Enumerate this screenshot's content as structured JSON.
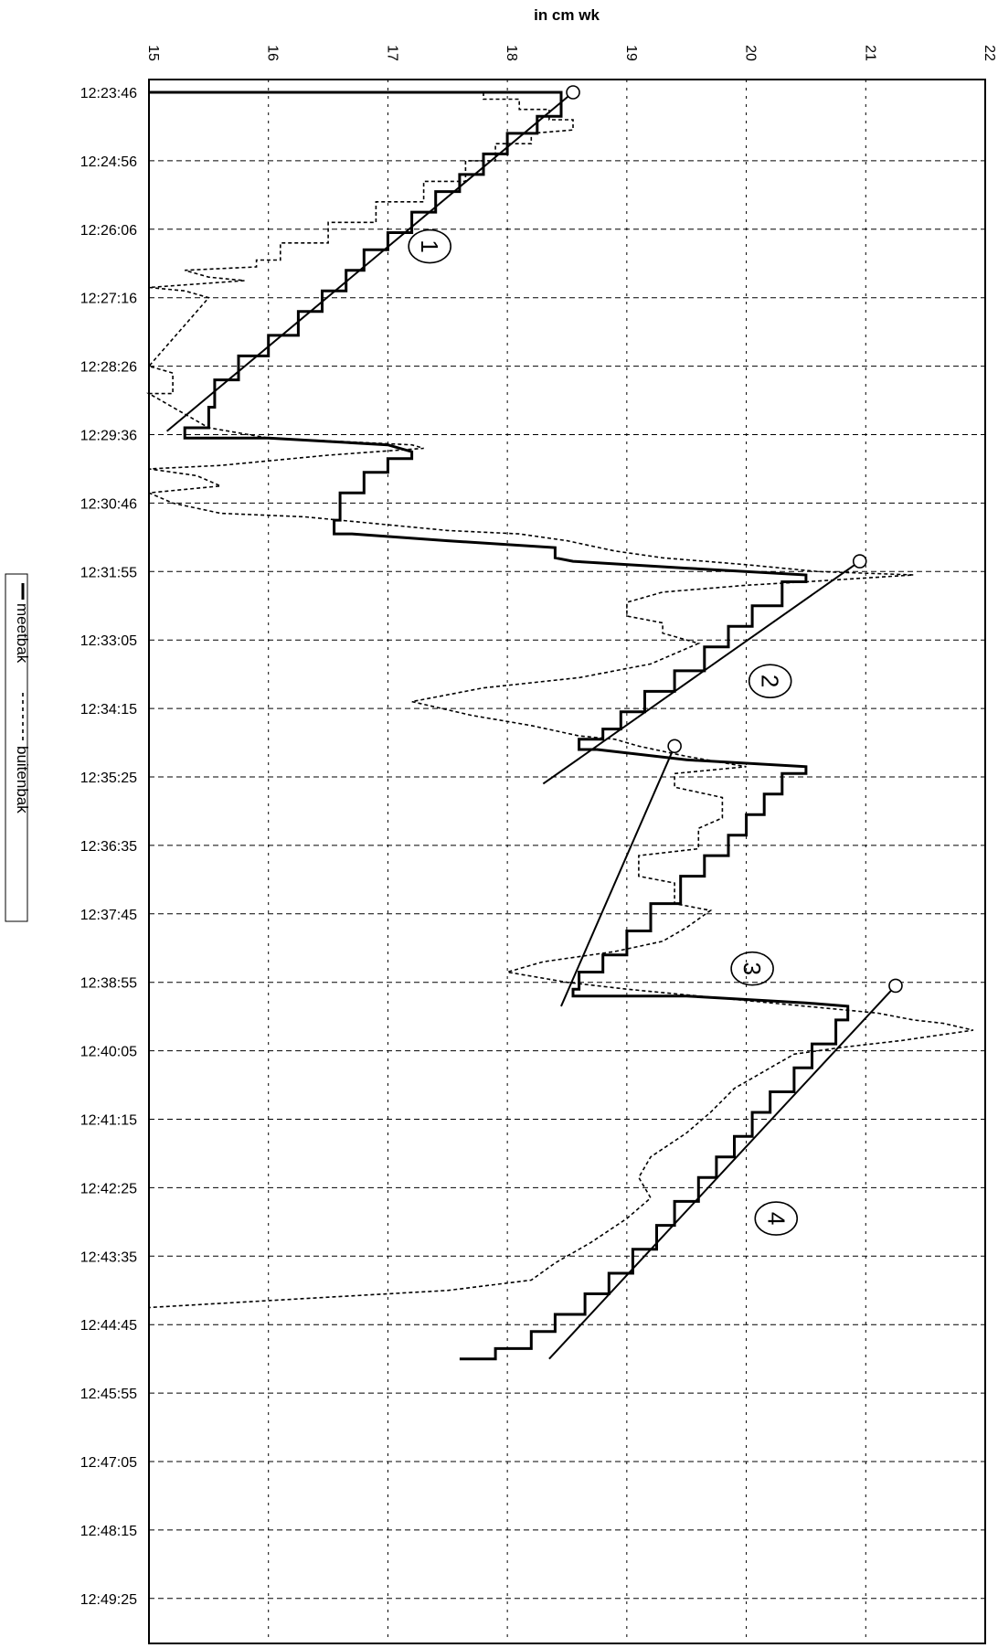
{
  "chart_data": {
    "type": "line",
    "title": "",
    "xlabel": "in cm wk",
    "ylabel": "",
    "orientation": "rotated-90",
    "value_axis": {
      "range": [
        15,
        22
      ],
      "ticks": [
        "15",
        "16",
        "17",
        "18",
        "19",
        "20",
        "21",
        "22"
      ],
      "position": "top"
    },
    "time_axis": {
      "position": "left",
      "ticks": [
        "12:23:46",
        "12:24:56",
        "12:26:06",
        "12:27:16",
        "12:28:26",
        "12:29:36",
        "12:30:46",
        "12:31:55",
        "12:33:05",
        "12:34:15",
        "12:35:25",
        "12:36:35",
        "12:37:45",
        "12:38:55",
        "12:40:05",
        "12:41:15",
        "12:42:25",
        "12:43:35",
        "12:44:45",
        "12:45:55",
        "12:47:05",
        "12:48:15",
        "12:49:25"
      ]
    },
    "grid": true,
    "legend": {
      "placement": "left",
      "entries": [
        "meetbak",
        "buitenbak"
      ]
    },
    "series": [
      {
        "name": "meetbak",
        "style": "solid",
        "points": [
          [
            0,
            15.0
          ],
          [
            0.0,
            18.45
          ],
          [
            0.35,
            18.45
          ],
          [
            0.35,
            18.25
          ],
          [
            0.6,
            18.25
          ],
          [
            0.6,
            18.0
          ],
          [
            0.9,
            18.0
          ],
          [
            0.9,
            17.8
          ],
          [
            1.2,
            17.8
          ],
          [
            1.2,
            17.6
          ],
          [
            1.45,
            17.6
          ],
          [
            1.45,
            17.4
          ],
          [
            1.75,
            17.4
          ],
          [
            1.75,
            17.2
          ],
          [
            2.05,
            17.2
          ],
          [
            2.05,
            17.0
          ],
          [
            2.3,
            17.0
          ],
          [
            2.3,
            16.8
          ],
          [
            2.6,
            16.8
          ],
          [
            2.6,
            16.65
          ],
          [
            2.9,
            16.65
          ],
          [
            2.9,
            16.45
          ],
          [
            3.2,
            16.45
          ],
          [
            3.2,
            16.25
          ],
          [
            3.55,
            16.25
          ],
          [
            3.55,
            16.0
          ],
          [
            3.85,
            16.0
          ],
          [
            3.85,
            15.75
          ],
          [
            4.2,
            15.75
          ],
          [
            4.2,
            15.55
          ],
          [
            4.6,
            15.55
          ],
          [
            4.6,
            15.5
          ],
          [
            4.9,
            15.5
          ],
          [
            4.9,
            15.3
          ],
          [
            5.05,
            15.3
          ],
          [
            5.05,
            16.0
          ],
          [
            5.15,
            17.0
          ],
          [
            5.25,
            17.2
          ],
          [
            5.35,
            17.2
          ],
          [
            5.35,
            17.0
          ],
          [
            5.55,
            17.0
          ],
          [
            5.55,
            16.8
          ],
          [
            5.85,
            16.8
          ],
          [
            5.85,
            16.6
          ],
          [
            6.25,
            16.6
          ],
          [
            6.25,
            16.55
          ],
          [
            6.45,
            16.55
          ],
          [
            6.45,
            16.7
          ],
          [
            6.55,
            17.5
          ],
          [
            6.65,
            18.4
          ],
          [
            6.8,
            18.4
          ],
          [
            6.85,
            18.55
          ],
          [
            6.95,
            19.5
          ],
          [
            7.05,
            20.5
          ],
          [
            7.15,
            20.5
          ],
          [
            7.15,
            20.3
          ],
          [
            7.5,
            20.3
          ],
          [
            7.5,
            20.05
          ],
          [
            7.8,
            20.05
          ],
          [
            7.8,
            19.85
          ],
          [
            8.1,
            19.85
          ],
          [
            8.1,
            19.65
          ],
          [
            8.45,
            19.65
          ],
          [
            8.45,
            19.4
          ],
          [
            8.75,
            19.4
          ],
          [
            8.75,
            19.15
          ],
          [
            9.05,
            19.15
          ],
          [
            9.05,
            18.95
          ],
          [
            9.3,
            18.95
          ],
          [
            9.3,
            18.8
          ],
          [
            9.45,
            18.8
          ],
          [
            9.45,
            18.6
          ],
          [
            9.6,
            18.6
          ],
          [
            9.6,
            18.75
          ],
          [
            9.75,
            19.5
          ],
          [
            9.85,
            20.5
          ],
          [
            9.95,
            20.5
          ],
          [
            9.95,
            20.3
          ],
          [
            10.25,
            20.3
          ],
          [
            10.25,
            20.15
          ],
          [
            10.55,
            20.15
          ],
          [
            10.55,
            20.0
          ],
          [
            10.85,
            20.0
          ],
          [
            10.85,
            19.85
          ],
          [
            11.15,
            19.85
          ],
          [
            11.15,
            19.65
          ],
          [
            11.45,
            19.65
          ],
          [
            11.45,
            19.45
          ],
          [
            11.85,
            19.45
          ],
          [
            11.85,
            19.2
          ],
          [
            12.25,
            19.2
          ],
          [
            12.25,
            19.0
          ],
          [
            12.6,
            19.0
          ],
          [
            12.6,
            18.8
          ],
          [
            12.85,
            18.8
          ],
          [
            12.85,
            18.6
          ],
          [
            13.1,
            18.6
          ],
          [
            13.1,
            18.55
          ],
          [
            13.2,
            18.55
          ],
          [
            13.2,
            19.5
          ],
          [
            13.3,
            20.5
          ],
          [
            13.35,
            20.85
          ],
          [
            13.55,
            20.85
          ],
          [
            13.55,
            20.75
          ],
          [
            13.9,
            20.75
          ],
          [
            13.9,
            20.55
          ],
          [
            14.25,
            20.55
          ],
          [
            14.25,
            20.4
          ],
          [
            14.6,
            20.4
          ],
          [
            14.6,
            20.2
          ],
          [
            14.9,
            20.2
          ],
          [
            14.9,
            20.05
          ],
          [
            15.25,
            20.05
          ],
          [
            15.25,
            19.9
          ],
          [
            15.55,
            19.9
          ],
          [
            15.55,
            19.75
          ],
          [
            15.85,
            19.75
          ],
          [
            15.85,
            19.6
          ],
          [
            16.2,
            19.6
          ],
          [
            16.2,
            19.4
          ],
          [
            16.55,
            19.4
          ],
          [
            16.55,
            19.25
          ],
          [
            16.9,
            19.25
          ],
          [
            16.9,
            19.05
          ],
          [
            17.25,
            19.05
          ],
          [
            17.25,
            18.85
          ],
          [
            17.55,
            18.85
          ],
          [
            17.55,
            18.65
          ],
          [
            17.85,
            18.65
          ],
          [
            17.85,
            18.4
          ],
          [
            18.1,
            18.4
          ],
          [
            18.1,
            18.2
          ],
          [
            18.35,
            18.2
          ],
          [
            18.35,
            17.9
          ],
          [
            18.5,
            17.9
          ],
          [
            18.5,
            17.6
          ]
        ]
      },
      {
        "name": "buitenbak",
        "style": "dashed",
        "points": [
          [
            0,
            17.8
          ],
          [
            0.1,
            17.8
          ],
          [
            0.1,
            18.1
          ],
          [
            0.25,
            18.1
          ],
          [
            0.25,
            18.35
          ],
          [
            0.4,
            18.35
          ],
          [
            0.4,
            18.55
          ],
          [
            0.55,
            18.55
          ],
          [
            0.6,
            18.2
          ],
          [
            0.75,
            18.2
          ],
          [
            0.75,
            17.9
          ],
          [
            1.0,
            17.9
          ],
          [
            1.0,
            17.65
          ],
          [
            1.3,
            17.65
          ],
          [
            1.3,
            17.3
          ],
          [
            1.6,
            17.3
          ],
          [
            1.6,
            16.9
          ],
          [
            1.9,
            16.9
          ],
          [
            1.9,
            16.5
          ],
          [
            2.2,
            16.5
          ],
          [
            2.2,
            16.1
          ],
          [
            2.45,
            16.1
          ],
          [
            2.45,
            15.9
          ],
          [
            2.55,
            15.9
          ],
          [
            2.6,
            15.3
          ],
          [
            2.7,
            15.5
          ],
          [
            2.75,
            15.8
          ],
          [
            2.85,
            15.0
          ],
          [
            2.9,
            15.3
          ],
          [
            3.0,
            15.5
          ],
          [
            4.0,
            15.0
          ],
          [
            4.1,
            15.2
          ],
          [
            4.4,
            15.2
          ],
          [
            4.4,
            15.0
          ],
          [
            4.9,
            15.5
          ],
          [
            5.05,
            16.0
          ],
          [
            5.15,
            17.2
          ],
          [
            5.2,
            17.3
          ],
          [
            5.3,
            16.5
          ],
          [
            5.45,
            15.6
          ],
          [
            5.5,
            15.0
          ],
          [
            5.6,
            15.4
          ],
          [
            5.75,
            15.6
          ],
          [
            5.85,
            15.0
          ],
          [
            6.0,
            15.2
          ],
          [
            6.15,
            15.6
          ],
          [
            6.2,
            16.3
          ],
          [
            6.3,
            16.9
          ],
          [
            6.4,
            17.5
          ],
          [
            6.45,
            18.1
          ],
          [
            6.55,
            18.5
          ],
          [
            6.7,
            18.9
          ],
          [
            6.8,
            19.3
          ],
          [
            6.9,
            20.0
          ],
          [
            7.0,
            20.6
          ],
          [
            7.05,
            21.4
          ],
          [
            7.15,
            20.5
          ],
          [
            7.2,
            20.0
          ],
          [
            7.3,
            19.3
          ],
          [
            7.45,
            19.0
          ],
          [
            7.65,
            19.0
          ],
          [
            7.75,
            19.3
          ],
          [
            7.9,
            19.3
          ],
          [
            8.05,
            19.6
          ],
          [
            8.35,
            19.2
          ],
          [
            8.55,
            18.6
          ],
          [
            8.7,
            17.8
          ],
          [
            8.9,
            17.2
          ],
          [
            9.1,
            17.7
          ],
          [
            9.25,
            18.2
          ],
          [
            9.4,
            18.6
          ],
          [
            9.45,
            18.9
          ],
          [
            9.55,
            19.1
          ],
          [
            9.7,
            19.5
          ],
          [
            9.85,
            20.0
          ],
          [
            9.95,
            19.4
          ],
          [
            10.15,
            19.4
          ],
          [
            10.3,
            19.8
          ],
          [
            10.6,
            19.8
          ],
          [
            10.75,
            19.6
          ],
          [
            11.05,
            19.6
          ],
          [
            11.15,
            19.1
          ],
          [
            11.45,
            19.1
          ],
          [
            11.55,
            19.4
          ],
          [
            11.85,
            19.4
          ],
          [
            11.95,
            19.7
          ],
          [
            12.2,
            19.5
          ],
          [
            12.4,
            19.3
          ],
          [
            12.55,
            18.9
          ],
          [
            12.7,
            18.3
          ],
          [
            12.85,
            18.0
          ],
          [
            13.0,
            18.5
          ],
          [
            13.1,
            19.0
          ],
          [
            13.2,
            19.6
          ],
          [
            13.35,
            20.5
          ],
          [
            13.45,
            21.1
          ],
          [
            13.55,
            21.4
          ],
          [
            13.6,
            21.65
          ],
          [
            13.7,
            21.9
          ],
          [
            13.85,
            21.3
          ],
          [
            13.95,
            20.8
          ],
          [
            14.05,
            20.4
          ],
          [
            14.25,
            20.2
          ],
          [
            14.55,
            19.9
          ],
          [
            14.9,
            19.7
          ],
          [
            15.2,
            19.5
          ],
          [
            15.55,
            19.2
          ],
          [
            15.85,
            19.1
          ],
          [
            16.15,
            19.2
          ],
          [
            16.45,
            19.0
          ],
          [
            16.8,
            18.7
          ],
          [
            17.1,
            18.4
          ],
          [
            17.35,
            18.2
          ],
          [
            17.5,
            17.5
          ],
          [
            17.6,
            16.5
          ],
          [
            17.7,
            15.5
          ],
          [
            17.75,
            15.0
          ]
        ]
      }
    ],
    "annotations": [
      {
        "label": "1",
        "kind": "trend",
        "from": [
          0.0,
          18.55
        ],
        "to": [
          4.95,
          15.15
        ]
      },
      {
        "label": "2",
        "kind": "trend",
        "from": [
          6.85,
          20.95
        ],
        "to": [
          10.1,
          18.3
        ]
      },
      {
        "label": "3",
        "kind": "trend",
        "from": [
          9.55,
          19.4
        ],
        "to": [
          13.35,
          18.45
        ]
      },
      {
        "label": "4",
        "kind": "trend",
        "from": [
          13.05,
          21.25
        ],
        "to": [
          18.5,
          18.35
        ]
      }
    ],
    "annotation_marks": [
      {
        "label": "1",
        "at": [
          2.25,
          17.35
        ]
      },
      {
        "label": "2",
        "at": [
          8.6,
          20.2
        ]
      },
      {
        "label": "3",
        "at": [
          12.8,
          20.05
        ]
      },
      {
        "label": "4",
        "at": [
          16.45,
          20.25
        ]
      }
    ]
  }
}
